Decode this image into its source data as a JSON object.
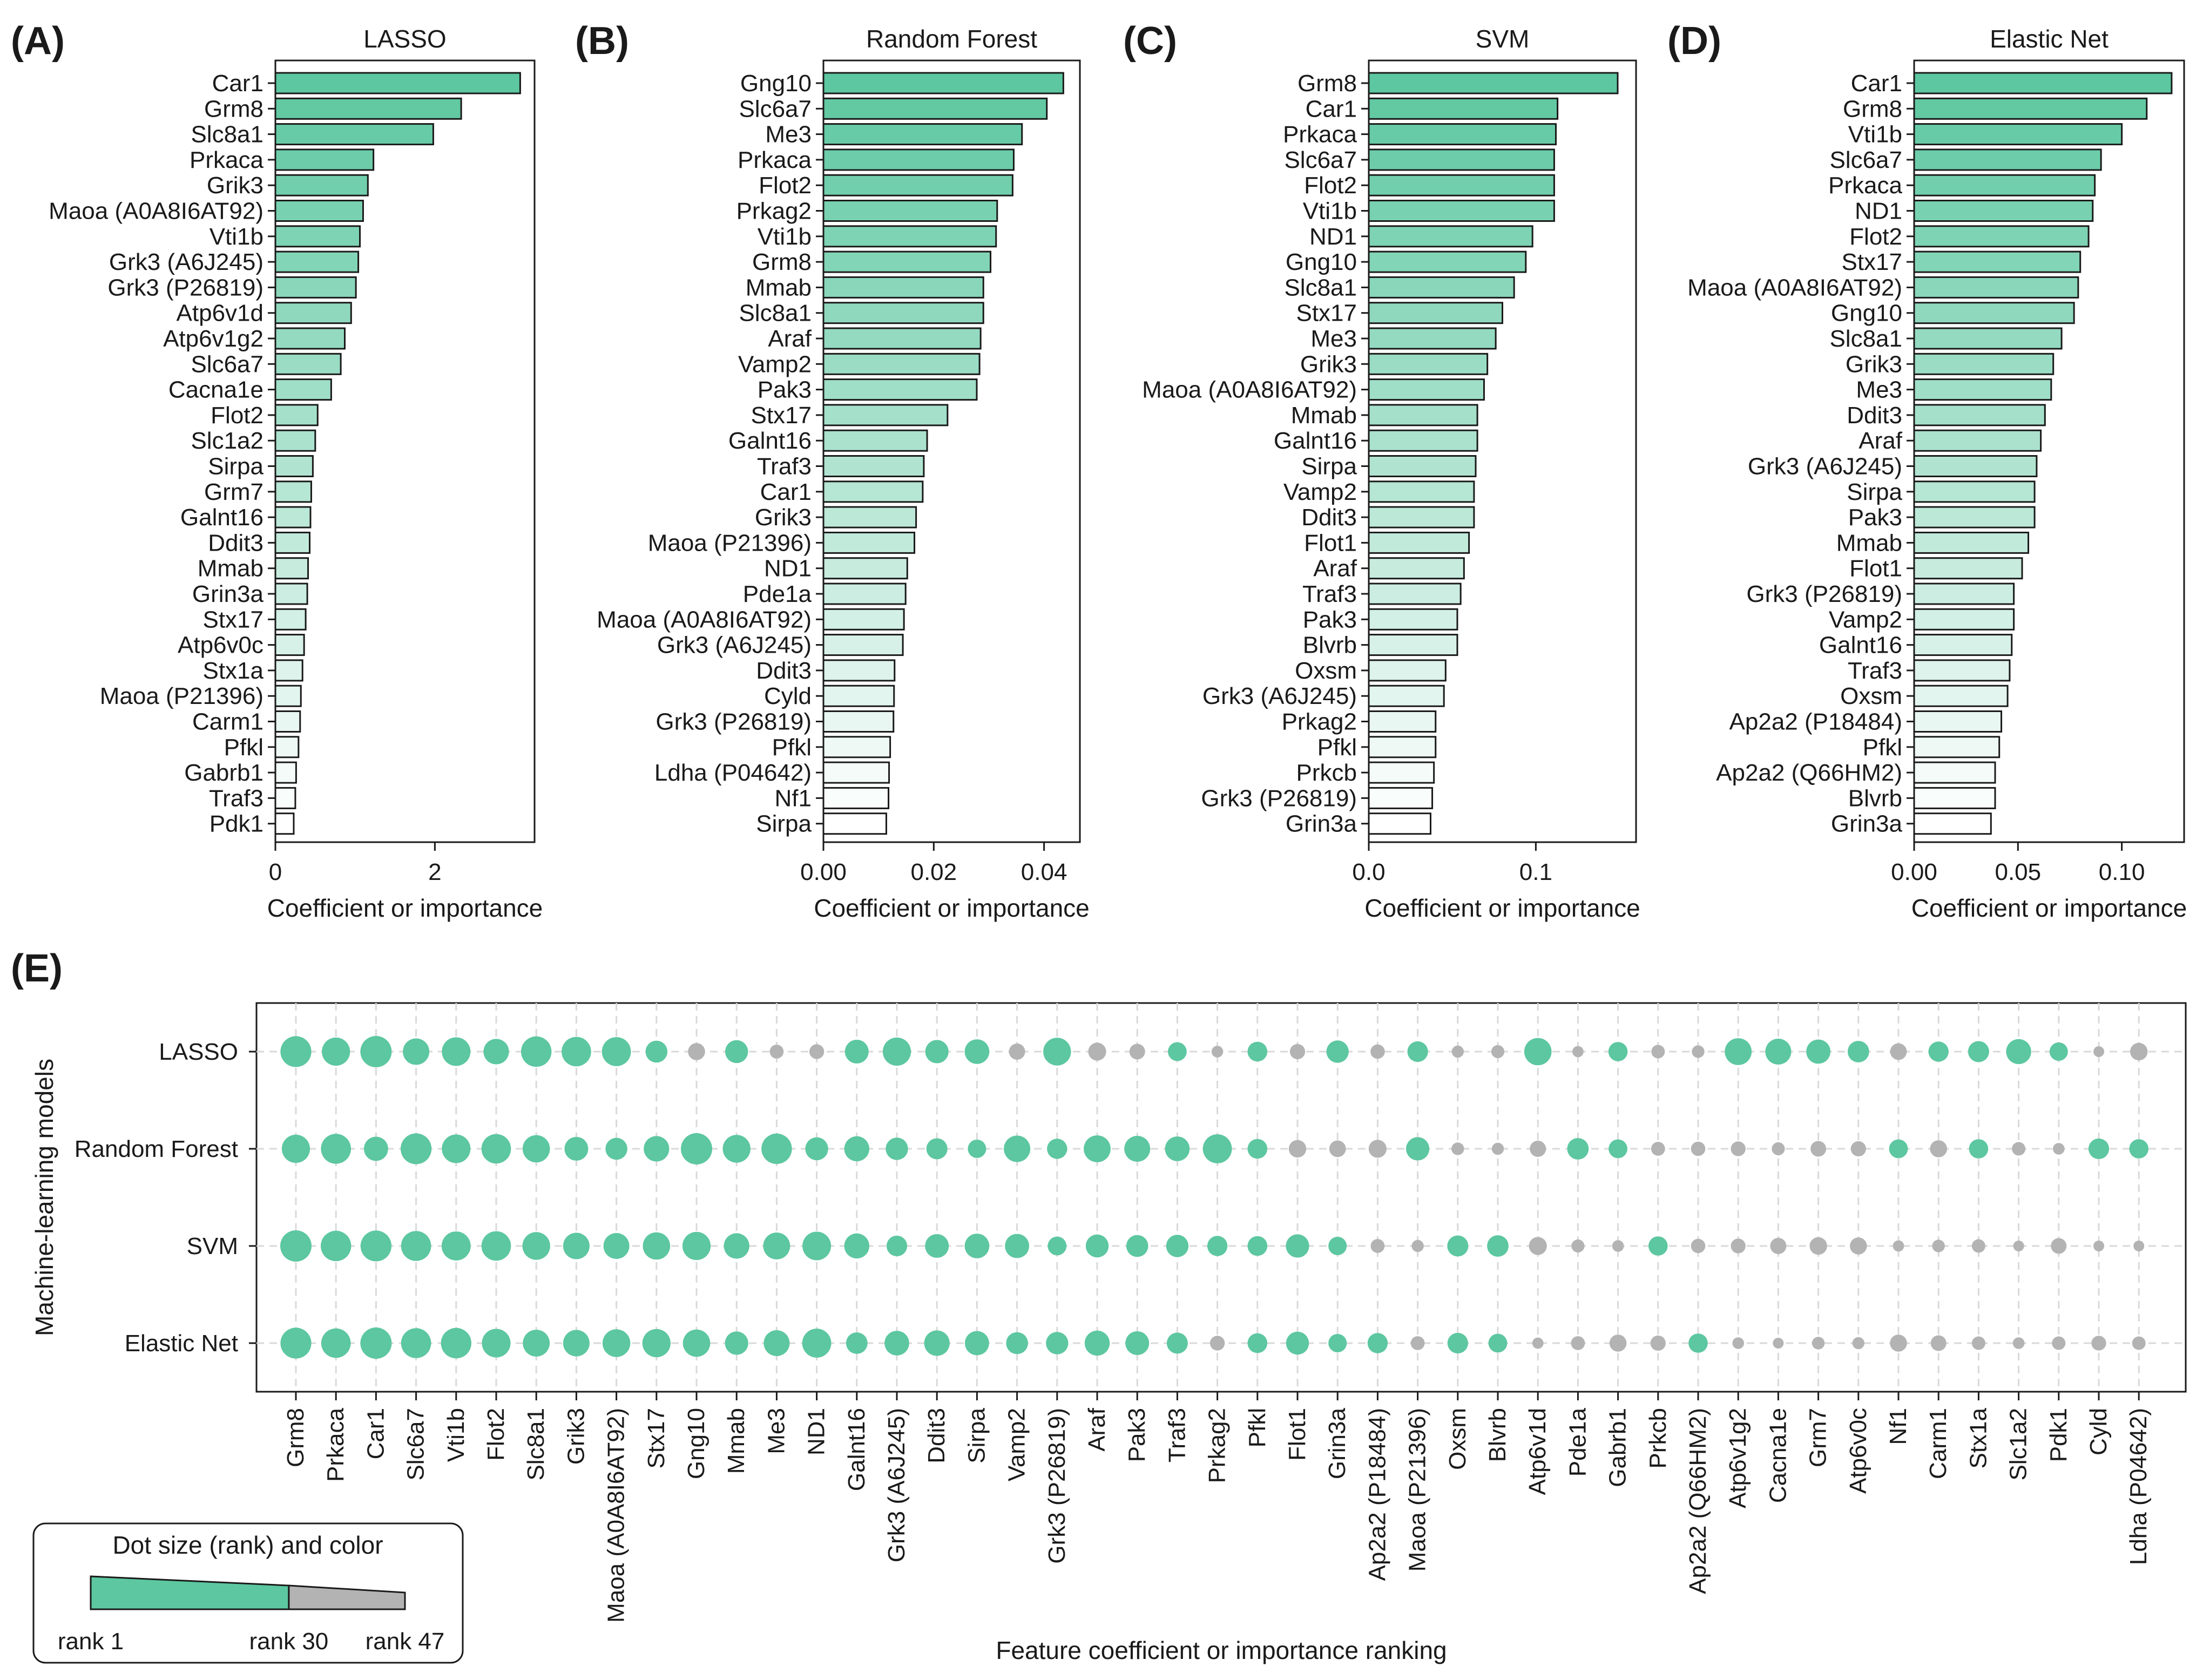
{
  "palette": {
    "high": "#5cc7a0",
    "low": "#ffffff",
    "gray": "#b3b3b3",
    "edge": "#1a1a1a",
    "grid": "#d9d9d9"
  },
  "chart_data": [
    {
      "panel": "(A)",
      "type": "bar",
      "orientation": "horizontal",
      "title": "LASSO",
      "xlabel": "Coefficient or importance",
      "xlim": [
        0,
        3.25
      ],
      "xticks": [
        0,
        2
      ],
      "tick_labels": [
        "0",
        "2"
      ],
      "categories": [
        "Car1",
        "Grm8",
        "Slc8a1",
        "Prkaca",
        "Grik3",
        "Maoa (A0A8I6AT92)",
        "Vti1b",
        "Grk3 (A6J245)",
        "Grk3 (P26819)",
        "Atp6v1d",
        "Atp6v1g2",
        "Slc6a7",
        "Cacna1e",
        "Flot2",
        "Slc1a2",
        "Sirpa",
        "Grm7",
        "Galnt16",
        "Ddit3",
        "Mmab",
        "Grin3a",
        "Stx17",
        "Atp6v0c",
        "Stx1a",
        "Maoa (P21396)",
        "Carm1",
        "Pfkl",
        "Gabrb1",
        "Traf3",
        "Pdk1"
      ],
      "values": [
        3.07,
        2.33,
        1.98,
        1.23,
        1.16,
        1.1,
        1.06,
        1.04,
        1.01,
        0.95,
        0.87,
        0.82,
        0.7,
        0.53,
        0.5,
        0.47,
        0.45,
        0.44,
        0.43,
        0.41,
        0.4,
        0.38,
        0.36,
        0.34,
        0.32,
        0.31,
        0.29,
        0.26,
        0.25,
        0.23
      ]
    },
    {
      "panel": "(B)",
      "type": "bar",
      "orientation": "horizontal",
      "title": "Random Forest",
      "xlabel": "Coefficient or importance",
      "xlim": [
        0,
        0.0465
      ],
      "xticks": [
        0,
        0.02,
        0.04
      ],
      "tick_labels": [
        "0.00",
        "0.02",
        "0.04"
      ],
      "categories": [
        "Gng10",
        "Slc6a7",
        "Me3",
        "Prkaca",
        "Flot2",
        "Prkag2",
        "Vti1b",
        "Grm8",
        "Mmab",
        "Slc8a1",
        "Araf",
        "Vamp2",
        "Pak3",
        "Stx17",
        "Galnt16",
        "Traf3",
        "Car1",
        "Grik3",
        "Maoa (P21396)",
        "ND1",
        "Pde1a",
        "Maoa (A0A8I6AT92)",
        "Grk3 (A6J245)",
        "Ddit3",
        "Cyld",
        "Grk3 (P26819)",
        "Pfkl",
        "Ldha (P04642)",
        "Nf1",
        "Sirpa"
      ],
      "values": [
        0.0435,
        0.0405,
        0.036,
        0.0345,
        0.0343,
        0.0315,
        0.0313,
        0.0303,
        0.029,
        0.029,
        0.0285,
        0.0283,
        0.0278,
        0.0225,
        0.0188,
        0.0182,
        0.018,
        0.0168,
        0.0165,
        0.0152,
        0.0149,
        0.0146,
        0.0144,
        0.0129,
        0.0128,
        0.0127,
        0.0121,
        0.0119,
        0.0118,
        0.0114
      ]
    },
    {
      "panel": "(C)",
      "type": "bar",
      "orientation": "horizontal",
      "title": "SVM",
      "xlabel": "Coefficient or importance",
      "xlim": [
        0,
        0.16
      ],
      "xticks": [
        0,
        0.1
      ],
      "tick_labels": [
        "0.0",
        "0.1"
      ],
      "categories": [
        "Grm8",
        "Car1",
        "Prkaca",
        "Slc6a7",
        "Flot2",
        "Vti1b",
        "ND1",
        "Gng10",
        "Slc8a1",
        "Stx17",
        "Me3",
        "Grik3",
        "Maoa (A0A8I6AT92)",
        "Mmab",
        "Galnt16",
        "Sirpa",
        "Vamp2",
        "Ddit3",
        "Flot1",
        "Araf",
        "Traf3",
        "Pak3",
        "Blvrb",
        "Oxsm",
        "Grk3 (A6J245)",
        "Prkag2",
        "Pfkl",
        "Prkcb",
        "Grk3 (P26819)",
        "Grin3a"
      ],
      "values": [
        0.149,
        0.113,
        0.112,
        0.111,
        0.111,
        0.111,
        0.098,
        0.094,
        0.087,
        0.08,
        0.076,
        0.071,
        0.069,
        0.065,
        0.065,
        0.064,
        0.063,
        0.063,
        0.06,
        0.057,
        0.055,
        0.053,
        0.053,
        0.046,
        0.045,
        0.04,
        0.04,
        0.039,
        0.038,
        0.037
      ]
    },
    {
      "panel": "(D)",
      "type": "bar",
      "orientation": "horizontal",
      "title": "Elastic Net",
      "xlabel": "Coefficient or importance",
      "xlim": [
        0,
        0.13
      ],
      "xticks": [
        0,
        0.05,
        0.1
      ],
      "tick_labels": [
        "0.00",
        "0.05",
        "0.10"
      ],
      "categories": [
        "Car1",
        "Grm8",
        "Vti1b",
        "Slc6a7",
        "Prkaca",
        "ND1",
        "Flot2",
        "Stx17",
        "Maoa (A0A8I6AT92)",
        "Gng10",
        "Slc8a1",
        "Grik3",
        "Me3",
        "Ddit3",
        "Araf",
        "Grk3 (A6J245)",
        "Sirpa",
        "Pak3",
        "Mmab",
        "Flot1",
        "Grk3 (P26819)",
        "Vamp2",
        "Galnt16",
        "Traf3",
        "Oxsm",
        "Ap2a2 (P18484)",
        "Pfkl",
        "Ap2a2 (Q66HM2)",
        "Blvrb",
        "Grin3a"
      ],
      "values": [
        0.124,
        0.112,
        0.1,
        0.09,
        0.087,
        0.086,
        0.084,
        0.08,
        0.079,
        0.077,
        0.071,
        0.067,
        0.066,
        0.063,
        0.061,
        0.059,
        0.058,
        0.058,
        0.055,
        0.052,
        0.048,
        0.048,
        0.047,
        0.046,
        0.045,
        0.042,
        0.041,
        0.039,
        0.039,
        0.037
      ]
    },
    {
      "panel": "(E)",
      "type": "dot",
      "xlabel": "Feature coefficient or importance ranking",
      "ylabel": "Machine-learning models",
      "models": [
        "LASSO",
        "Random Forest",
        "SVM",
        "Elastic Net"
      ],
      "features": [
        "Grm8",
        "Prkaca",
        "Car1",
        "Slc6a7",
        "Vti1b",
        "Flot2",
        "Slc8a1",
        "Grik3",
        "Maoa (A0A8I6AT92)",
        "Stx17",
        "Gng10",
        "Mmab",
        "Me3",
        "ND1",
        "Galnt16",
        "Grk3 (A6J245)",
        "Ddit3",
        "Sirpa",
        "Vamp2",
        "Grk3 (P26819)",
        "Araf",
        "Pak3",
        "Traf3",
        "Prkag2",
        "Pfkl",
        "Flot1",
        "Grin3a",
        "Ap2a2 (P18484)",
        "Maoa (P21396)",
        "Oxsm",
        "Blvrb",
        "Atp6v1d",
        "Pde1a",
        "Gabrb1",
        "Prkcb",
        "Ap2a2 (Q66HM2)",
        "Atp6v1g2",
        "Cacna1e",
        "Grm7",
        "Atp6v0c",
        "Nf1",
        "Carm1",
        "Stx1a",
        "Slc1a2",
        "Pdk1",
        "Cyld",
        "Ldha (P04642)"
      ],
      "ranks": [
        [
          2,
          8,
          1,
          12,
          7,
          14,
          3,
          5,
          6,
          22,
          33,
          20,
          40,
          38,
          18,
          8,
          19,
          16,
          35,
          9,
          31,
          36,
          29,
          45,
          27,
          37,
          21,
          39,
          25,
          44,
          42,
          10,
          46,
          28,
          41,
          43,
          11,
          13,
          17,
          23,
          34,
          26,
          24,
          15,
          30,
          47,
          32
        ],
        [
          8,
          4,
          17,
          2,
          7,
          5,
          10,
          18,
          22,
          14,
          1,
          9,
          3,
          20,
          15,
          21,
          24,
          30,
          12,
          26,
          11,
          13,
          16,
          6,
          27,
          32,
          34,
          31,
          19,
          43,
          44,
          35,
          23,
          29,
          40,
          39,
          38,
          42,
          36,
          37,
          29,
          33,
          28,
          41,
          45,
          25,
          28
        ],
        [
          1,
          3,
          2,
          4,
          6,
          5,
          9,
          12,
          13,
          10,
          8,
          14,
          11,
          7,
          15,
          25,
          18,
          16,
          17,
          29,
          20,
          22,
          21,
          26,
          27,
          19,
          30,
          40,
          44,
          24,
          23,
          31,
          42,
          45,
          28,
          39,
          38,
          35,
          32,
          33,
          46,
          43,
          41,
          47,
          36,
          47,
          47
        ],
        [
          2,
          5,
          1,
          4,
          3,
          7,
          11,
          12,
          9,
          8,
          10,
          19,
          13,
          6,
          23,
          16,
          14,
          17,
          22,
          21,
          15,
          18,
          24,
          38,
          27,
          20,
          30,
          26,
          40,
          25,
          29,
          46,
          40,
          33,
          37,
          28,
          45,
          47,
          43,
          44,
          33,
          36,
          41,
          45,
          41,
          38,
          41
        ]
      ],
      "legend": {
        "title": "Dot size (rank) and color",
        "start": "rank 1",
        "mid": "rank 30",
        "end": "rank 47",
        "cutoff": 30,
        "max": 47
      }
    }
  ]
}
